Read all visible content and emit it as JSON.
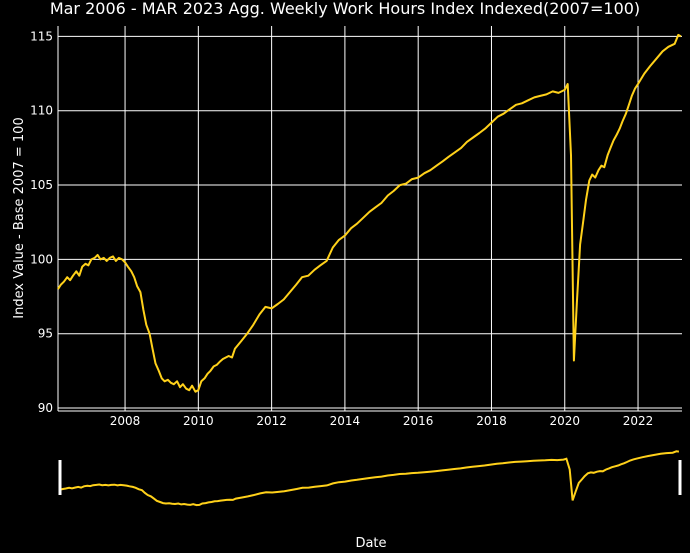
{
  "colors": {
    "background": "#000000",
    "series": "#FFD11A",
    "grid": "#FFFFFF",
    "text": "#FFFFFF"
  },
  "chart_data": {
    "type": "line",
    "title": "Mar 2006 - MAR 2023 Agg. Weekly Work Hours Index Indexed(2007=100)",
    "xlabel": "Date",
    "ylabel": "Index Value - Base 2007 = 100",
    "xlim": [
      2006.17,
      2023.2
    ],
    "ylim": [
      89.8,
      115.7
    ],
    "x_ticks": [
      "2008",
      "2010",
      "2012",
      "2014",
      "2016",
      "2018",
      "2020",
      "2022"
    ],
    "y_ticks": [
      "90",
      "95",
      "100",
      "105",
      "110",
      "115"
    ],
    "grid": true,
    "range_slider": true,
    "series": [
      {
        "x": [
          2006.17,
          2006.25,
          2006.33,
          2006.42,
          2006.5,
          2006.58,
          2006.67,
          2006.75,
          2006.83,
          2006.92,
          2007.0,
          2007.08,
          2007.17,
          2007.25,
          2007.33,
          2007.42,
          2007.5,
          2007.58,
          2007.67,
          2007.75,
          2007.83,
          2007.92,
          2008.0,
          2008.08,
          2008.17,
          2008.25,
          2008.33,
          2008.42,
          2008.5,
          2008.58,
          2008.67,
          2008.75,
          2008.83,
          2008.92,
          2009.0,
          2009.08,
          2009.17,
          2009.25,
          2009.33,
          2009.42,
          2009.5,
          2009.58,
          2009.67,
          2009.75,
          2009.83,
          2009.92,
          2010.0,
          2010.08,
          2010.17,
          2010.25,
          2010.33,
          2010.42,
          2010.5,
          2010.58,
          2010.67,
          2010.75,
          2010.83,
          2010.92,
          2011.0,
          2011.17,
          2011.33,
          2011.5,
          2011.67,
          2011.83,
          2012.0,
          2012.17,
          2012.33,
          2012.5,
          2012.67,
          2012.83,
          2013.0,
          2013.17,
          2013.33,
          2013.5,
          2013.67,
          2013.83,
          2014.0,
          2014.17,
          2014.33,
          2014.5,
          2014.67,
          2014.83,
          2015.0,
          2015.17,
          2015.33,
          2015.5,
          2015.67,
          2015.83,
          2016.0,
          2016.17,
          2016.33,
          2016.5,
          2016.67,
          2016.83,
          2017.0,
          2017.17,
          2017.33,
          2017.5,
          2017.67,
          2017.83,
          2018.0,
          2018.17,
          2018.33,
          2018.5,
          2018.67,
          2018.83,
          2019.0,
          2019.17,
          2019.33,
          2019.5,
          2019.67,
          2019.83,
          2020.0,
          2020.08,
          2020.17,
          2020.25,
          2020.33,
          2020.42,
          2020.5,
          2020.58,
          2020.67,
          2020.75,
          2020.83,
          2020.92,
          2021.0,
          2021.08,
          2021.17,
          2021.25,
          2021.33,
          2021.42,
          2021.5,
          2021.58,
          2021.67,
          2021.75,
          2021.83,
          2021.92,
          2022.0,
          2022.17,
          2022.33,
          2022.5,
          2022.67,
          2022.83,
          2023.0,
          2023.1,
          2023.17
        ],
        "y": [
          98.0,
          98.3,
          98.5,
          98.8,
          98.6,
          98.9,
          99.2,
          98.9,
          99.5,
          99.7,
          99.6,
          100.0,
          100.1,
          100.3,
          100.0,
          100.1,
          99.9,
          100.1,
          100.2,
          99.9,
          100.1,
          100.0,
          99.8,
          99.5,
          99.2,
          98.8,
          98.2,
          97.8,
          96.6,
          95.6,
          95.0,
          94.0,
          93.0,
          92.5,
          92.0,
          91.8,
          91.9,
          91.7,
          91.6,
          91.8,
          91.4,
          91.6,
          91.3,
          91.2,
          91.5,
          91.1,
          91.2,
          91.8,
          92.0,
          92.3,
          92.5,
          92.8,
          92.9,
          93.1,
          93.3,
          93.4,
          93.5,
          93.4,
          94.0,
          94.5,
          95.0,
          95.6,
          96.3,
          96.8,
          96.7,
          97.0,
          97.3,
          97.8,
          98.3,
          98.8,
          98.9,
          99.3,
          99.6,
          99.9,
          100.8,
          101.3,
          101.6,
          102.1,
          102.4,
          102.8,
          103.2,
          103.5,
          103.8,
          104.3,
          104.6,
          105.0,
          105.1,
          105.4,
          105.5,
          105.8,
          106.0,
          106.3,
          106.6,
          106.9,
          107.2,
          107.5,
          107.9,
          108.2,
          108.5,
          108.8,
          109.2,
          109.6,
          109.8,
          110.1,
          110.4,
          110.5,
          110.7,
          110.9,
          111.0,
          111.1,
          111.3,
          111.2,
          111.4,
          111.8,
          107.0,
          93.2,
          97.0,
          101.0,
          102.5,
          104.0,
          105.3,
          105.7,
          105.5,
          106.0,
          106.3,
          106.2,
          107.0,
          107.5,
          108.0,
          108.4,
          108.8,
          109.3,
          109.8,
          110.4,
          111.0,
          111.5,
          111.8,
          112.5,
          113.0,
          113.5,
          114.0,
          114.3,
          114.5,
          115.1,
          115.0
        ]
      }
    ]
  }
}
